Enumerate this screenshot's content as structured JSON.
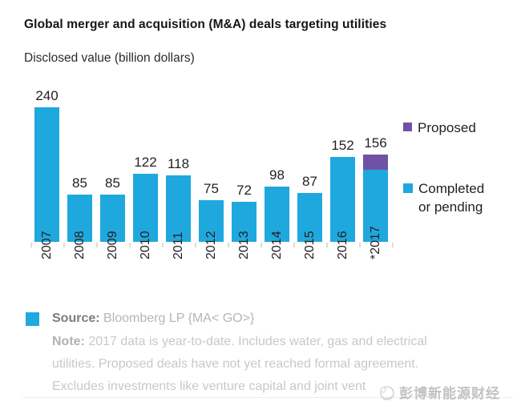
{
  "chart_data": {
    "type": "bar",
    "stacked": true,
    "title": "Global merger and acquisition (M&A) deals targeting utilities",
    "subtitle": "Disclosed value (billion dollars)",
    "xlabel": "",
    "ylabel": "Disclosed value (billion dollars)",
    "categories": [
      "2007",
      "2008",
      "2009",
      "2010",
      "2011",
      "2012",
      "2013",
      "2014",
      "2015",
      "2016",
      "*2017"
    ],
    "series": [
      {
        "name": "Completed or pending",
        "color": "#1fa8de",
        "values": [
          240,
          85,
          85,
          122,
          118,
          75,
          72,
          98,
          87,
          152,
          128
        ]
      },
      {
        "name": "Proposed",
        "color": "#6f52a5",
        "values": [
          0,
          0,
          0,
          0,
          0,
          0,
          0,
          0,
          0,
          0,
          28
        ]
      }
    ],
    "totals": [
      240,
      85,
      85,
      122,
      118,
      75,
      72,
      98,
      87,
      152,
      156
    ],
    "ylim": [
      0,
      240
    ],
    "grid": false,
    "value_labels": "totals shown above each bar",
    "legend_position": "right"
  },
  "legend": {
    "proposed": "Proposed",
    "completed": "Completed or pending"
  },
  "footer": {
    "source_label": "Source:",
    "source_text": "Bloomberg LP {MA< GO>}",
    "note_label": "Note:",
    "note_lines": [
      "2017 data is year-to-date. Includes water, gas and electrical",
      "utilities. Proposed deals have not yet reached formal agreement.",
      "Excludes investments like venture capital and joint vent"
    ],
    "watermark": "彭博新能源财经"
  },
  "colors": {
    "completed": "#1fa8de",
    "proposed": "#6f52a5",
    "label": "#231f20"
  }
}
